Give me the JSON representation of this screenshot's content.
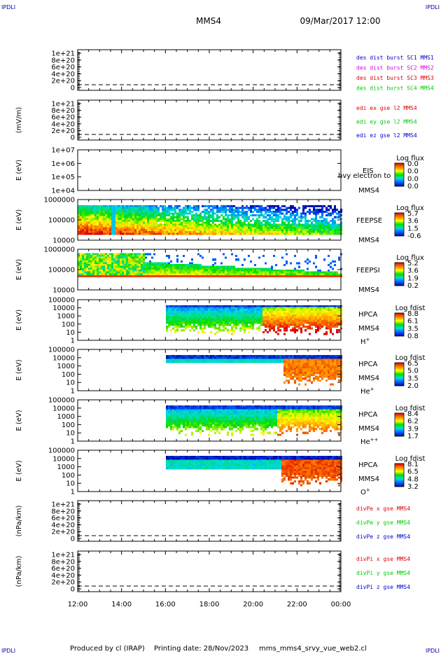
{
  "header": {
    "corner_tl": "IPDLI",
    "corner_tr": "IPDLI",
    "title": "MMS4",
    "datetime": "09/Mar/2017 12:00",
    "corner_bl": "IPDLI",
    "corner_br": "IPDLI"
  },
  "footer": {
    "produced": "Produced by cl (IRAP)",
    "printing": "Printing date: 28/Nov/2023",
    "file": "mms_mms4_srvy_vue_web2.cl"
  },
  "colors": {
    "red": "#e00000",
    "magenta": "#dd00dd",
    "green": "#00cc00",
    "blue": "#0000cc"
  },
  "chart_data": {
    "type": "multi-panel",
    "x_ticks": [
      "12:00",
      "14:00",
      "16:00",
      "18:00",
      "20:00",
      "22:00",
      "00:00"
    ],
    "panels": [
      {
        "id": "des-dist",
        "type": "line",
        "ylabel": "",
        "ytick_labels": [
          "1e+21",
          "8e+20",
          "6e+20",
          "4e+20",
          "2e+20",
          "0"
        ],
        "legend": [
          {
            "text": "des dist burst SC1 MMS1",
            "color": "#0000cc"
          },
          {
            "text": "des dist burst SC2 MMS2",
            "color": "#dd00dd"
          },
          {
            "text": "des dist burst SC3 MMS3",
            "color": "#e00000"
          },
          {
            "text": "des dist burst SC4 MMS4",
            "color": "#00cc00"
          }
        ]
      },
      {
        "id": "edi-e",
        "type": "line",
        "ylabel": "(mV/m)",
        "ytick_labels": [
          "1e+21",
          "8e+20",
          "6e+20",
          "4e+20",
          "2e+20",
          "0"
        ],
        "legend": [
          {
            "text": "edi ex gse l2 MMS4",
            "color": "#e00000"
          },
          {
            "text": "edi ey gse l2 MMS4",
            "color": "#00cc00"
          },
          {
            "text": "edi ez gse l2 MMS4",
            "color": "#0000cc"
          }
        ]
      },
      {
        "id": "eis",
        "type": "heatmap",
        "ylabel": "E (eV)",
        "ytick_labels": [
          "1e+07",
          "1e+06",
          "1e+05",
          "1e+04"
        ],
        "instrument": "EIS",
        "overlay": "hvy electron to",
        "spacecraft": "MMS4",
        "cbar_title": "Log flux",
        "cbar_values": [
          "0.0",
          "0.0",
          "0.0",
          "0.0"
        ]
      },
      {
        "id": "feepse",
        "type": "heatmap",
        "ylabel": "E (eV)",
        "ytick_labels": [
          "1000000",
          "100000",
          "10000"
        ],
        "instrument": "FEEPSE",
        "spacecraft": "MMS4",
        "cbar_title": "Log flux",
        "cbar_values": [
          "5.7",
          "3.6",
          "1.5",
          "-0.6"
        ]
      },
      {
        "id": "feepsi",
        "type": "heatmap",
        "ylabel": "E (eV)",
        "ytick_labels": [
          "1000000",
          "100000",
          "10000"
        ],
        "instrument": "FEEPSI",
        "spacecraft": "MMS4",
        "cbar_title": "Log flux",
        "cbar_values": [
          "5.2",
          "3.6",
          "1.9",
          "0.2"
        ]
      },
      {
        "id": "hpca-h",
        "type": "heatmap",
        "ylabel": "E (eV)",
        "ytick_labels": [
          "100000",
          "10000",
          "1000",
          "100",
          "10",
          "1"
        ],
        "instrument": "HPCA",
        "spacecraft": "MMS4",
        "species": "H",
        "charge": "+",
        "cbar_title": "Log fdist",
        "cbar_values": [
          "8.8",
          "6.1",
          "3.5",
          "0.8"
        ]
      },
      {
        "id": "hpca-he",
        "type": "heatmap",
        "ylabel": "E (eV)",
        "ytick_labels": [
          "100000",
          "10000",
          "1000",
          "100",
          "10",
          "1"
        ],
        "instrument": "HPCA",
        "spacecraft": "MMS4",
        "species": "He",
        "charge": "+",
        "cbar_title": "Log fdist",
        "cbar_values": [
          "6.5",
          "5.0",
          "3.5",
          "2.0"
        ]
      },
      {
        "id": "hpca-hepp",
        "type": "heatmap",
        "ylabel": "E (eV)",
        "ytick_labels": [
          "100000",
          "10000",
          "1000",
          "100",
          "10",
          "1"
        ],
        "instrument": "HPCA",
        "spacecraft": "MMS4",
        "species": "He",
        "charge": "++",
        "cbar_title": "Log fdist",
        "cbar_values": [
          "8.4",
          "6.2",
          "3.9",
          "1.7"
        ]
      },
      {
        "id": "hpca-o",
        "type": "heatmap",
        "ylabel": "E (eV)",
        "ytick_labels": [
          "100000",
          "10000",
          "1000",
          "100",
          "10",
          "1"
        ],
        "instrument": "HPCA",
        "spacecraft": "MMS4",
        "species": "O",
        "charge": "+",
        "cbar_title": "Log fdist",
        "cbar_values": [
          "8.1",
          "6.5",
          "4.8",
          "3.2"
        ]
      },
      {
        "id": "divpe",
        "type": "line",
        "ylabel": "(nPa/km)",
        "ytick_labels": [
          "1e+21",
          "8e+20",
          "6e+20",
          "4e+20",
          "2e+20",
          "0"
        ],
        "legend": [
          {
            "text": "divPe x gse MMS4",
            "color": "#e00000"
          },
          {
            "text": "divPe y gse MMS4",
            "color": "#00cc00"
          },
          {
            "text": "divPe z gse MMS4",
            "color": "#0000cc"
          }
        ]
      },
      {
        "id": "divpi",
        "type": "line",
        "ylabel": "(nPa/km)",
        "ytick_labels": [
          "1e+21",
          "8e+20",
          "6e+20",
          "4e+20",
          "2e+20",
          "0"
        ],
        "legend": [
          {
            "text": "divPi x gse MMS4",
            "color": "#e00000"
          },
          {
            "text": "divPi y gse MMS4",
            "color": "#00cc00"
          },
          {
            "text": "divPi z gse MMS4",
            "color": "#0000cc"
          }
        ]
      }
    ]
  }
}
